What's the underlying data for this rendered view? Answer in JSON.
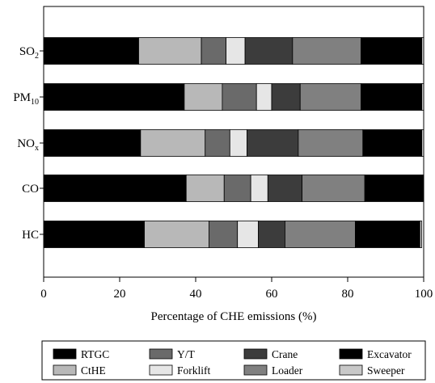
{
  "chart_data": {
    "type": "bar",
    "orientation": "horizontal",
    "stacked": true,
    "title": "",
    "xlabel": "Percentage of CHE emissions (%)",
    "ylabel": "",
    "xlim": [
      0,
      100
    ],
    "x_ticks": [
      "0",
      "20",
      "40",
      "60",
      "80",
      "100"
    ],
    "grid": false,
    "legend_position": "bottom",
    "categories": [
      {
        "base": "SO",
        "sub": "2"
      },
      {
        "base": "PM",
        "sub": "10"
      },
      {
        "base": "NO",
        "sub": "x"
      },
      {
        "base": "CO",
        "sub": ""
      },
      {
        "base": "HC",
        "sub": ""
      }
    ],
    "series": [
      {
        "name": "RTGC",
        "color": "#000000",
        "values": [
          25,
          37,
          25.5,
          37.5,
          26.5
        ]
      },
      {
        "name": "CtHE",
        "color": "#b8b8b8",
        "values": [
          16.5,
          10,
          17,
          10,
          17
        ]
      },
      {
        "name": "Y/T",
        "color": "#6a6a6a",
        "values": [
          6.5,
          9,
          6.5,
          7,
          7.5
        ]
      },
      {
        "name": "Forklift",
        "color": "#e6e6e6",
        "values": [
          5,
          4,
          4.5,
          4.5,
          5.5
        ]
      },
      {
        "name": "Crane",
        "color": "#3c3c3c",
        "values": [
          12.5,
          7.5,
          13.5,
          9,
          7
        ]
      },
      {
        "name": "Loader",
        "color": "#808080",
        "values": [
          18,
          16,
          17,
          16.5,
          18.5
        ]
      },
      {
        "name": "Excavator",
        "color": "#000000",
        "values": [
          16,
          16,
          15.5,
          15.5,
          17
        ]
      },
      {
        "name": "Sweeper",
        "color": "#c8c8c8",
        "values": [
          0.5,
          0.5,
          0.5,
          0,
          0.5
        ]
      }
    ]
  }
}
